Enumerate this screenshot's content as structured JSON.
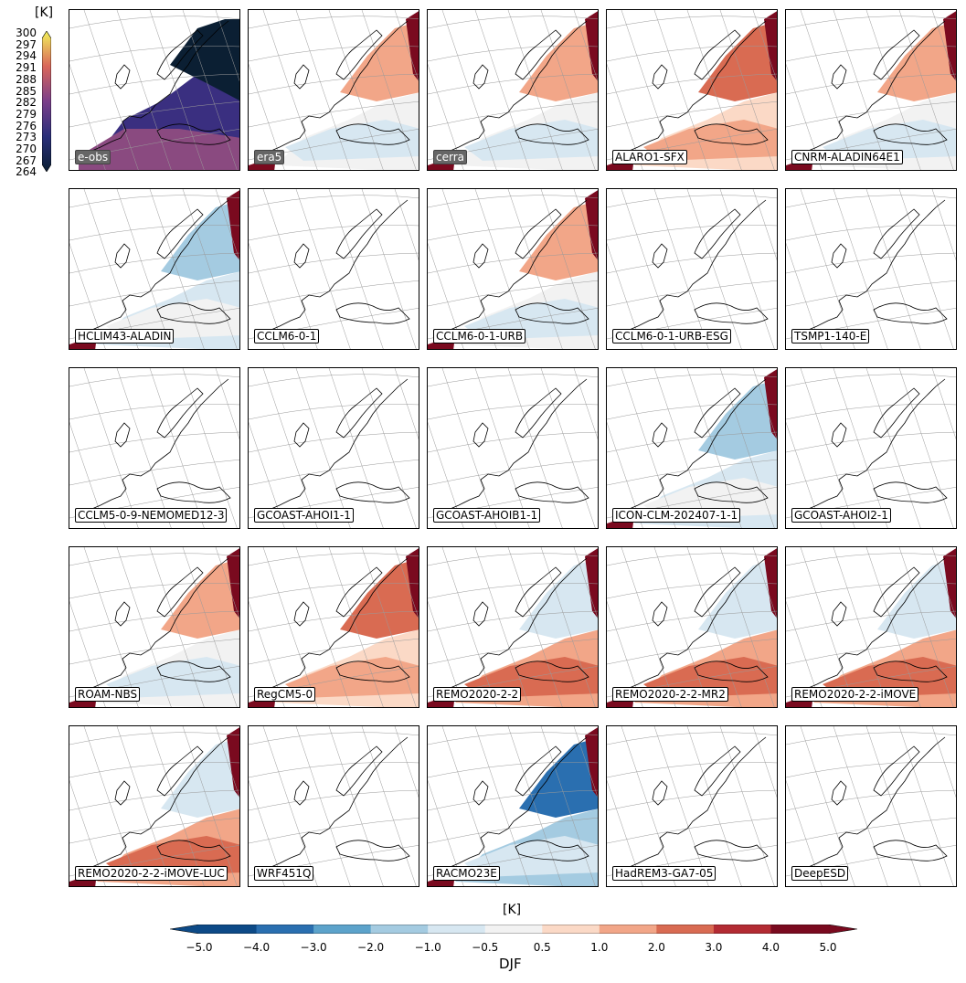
{
  "reference_colorbar": {
    "unit": "[K]",
    "ticks": [
      "300",
      "297",
      "294",
      "291",
      "288",
      "285",
      "282",
      "279",
      "276",
      "273",
      "270",
      "267",
      "264"
    ]
  },
  "colorbar": {
    "unit": "[K]",
    "ticks": [
      "−5.0",
      "−4.0",
      "−3.0",
      "−2.0",
      "−1.0",
      "−0.5",
      "0.5",
      "1.0",
      "2.0",
      "3.0",
      "4.0",
      "5.0"
    ],
    "colors": [
      "#0d4a87",
      "#2a6fb0",
      "#5ca3cb",
      "#a4cbe1",
      "#d7e7f1",
      "#f2f2f2",
      "#fbd9c6",
      "#f2a688",
      "#d96b52",
      "#b32b33",
      "#7a0a1f"
    ]
  },
  "season": "DJF",
  "panels": [
    {
      "label": "e-obs",
      "kind": "abs"
    },
    {
      "label": "era5",
      "kind": "ref",
      "pattern": "light"
    },
    {
      "label": "cerra",
      "kind": "ref",
      "pattern": "light"
    },
    {
      "label": "ALARO1-SFX",
      "pattern": "warmnorth"
    },
    {
      "label": "CNRM-ALADIN64E1",
      "pattern": "light"
    },
    {
      "label": "HCLIM43-ALADIN",
      "pattern": "cool"
    },
    {
      "label": "CCLM6-0-1",
      "pattern": "empty"
    },
    {
      "label": "CCLM6-0-1-URB",
      "pattern": "light"
    },
    {
      "label": "CCLM6-0-1-URB-ESG",
      "pattern": "empty"
    },
    {
      "label": "TSMP1-140-E",
      "pattern": "empty"
    },
    {
      "label": "CCLM5-0-9-NEMOMED12-3",
      "pattern": "empty"
    },
    {
      "label": "GCOAST-AHOI1-1",
      "pattern": "empty"
    },
    {
      "label": "GCOAST-AHOIB1-1",
      "pattern": "empty"
    },
    {
      "label": "ICON-CLM-202407-1-1",
      "pattern": "cool"
    },
    {
      "label": "GCOAST-AHOI2-1",
      "pattern": "empty"
    },
    {
      "label": "ROAM-NBS",
      "pattern": "light"
    },
    {
      "label": "RegCM5-0",
      "pattern": "warmnorth"
    },
    {
      "label": "REMO2020-2-2",
      "pattern": "warmsouth"
    },
    {
      "label": "REMO2020-2-2-MR2",
      "pattern": "warmsouth"
    },
    {
      "label": "REMO2020-2-2-iMOVE",
      "pattern": "warmsouth"
    },
    {
      "label": "REMO2020-2-2-iMOVE-LUC",
      "pattern": "warmsouth"
    },
    {
      "label": "WRF451Q",
      "pattern": "empty"
    },
    {
      "label": "RACMO23E",
      "pattern": "coldnorth"
    },
    {
      "label": "HadREM3-GA7-05",
      "pattern": "empty"
    },
    {
      "label": "DeepESD",
      "pattern": "empty"
    }
  ]
}
